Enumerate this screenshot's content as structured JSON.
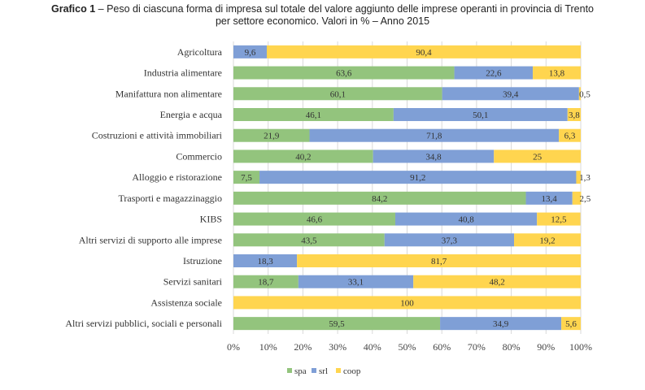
{
  "title": {
    "bold": "Grafico 1",
    "line1": " – Peso di ciascuna forma di impresa sul totale del valore aggiunto delle imprese operanti in provincia di Trento",
    "line2": "per settore economico. Valori in % – Anno 2015"
  },
  "chart_data": {
    "type": "bar",
    "orientation": "horizontal",
    "stacked": "100%",
    "categories": [
      "Agricoltura",
      "Industria alimentare",
      "Manifattura non alimentare",
      "Energia e acqua",
      "Costruzioni e attività immobiliari",
      "Commercio",
      "Alloggio e ristorazione",
      "Trasporti e magazzinaggio",
      "KIBS",
      "Altri servizi di supporto alle imprese",
      "Istruzione",
      "Servizi sanitari",
      "Assistenza sociale",
      "Altri servizi pubblici, sociali e personali"
    ],
    "series": [
      {
        "name": "spa",
        "color": "#93c47d",
        "values": [
          0,
          63.6,
          60.1,
          46.1,
          21.9,
          40.2,
          7.5,
          84.2,
          46.6,
          43.5,
          0,
          18.7,
          0,
          59.5
        ]
      },
      {
        "name": "srl",
        "color": "#7f9fd6",
        "values": [
          9.6,
          22.6,
          39.4,
          50.1,
          71.8,
          34.8,
          91.2,
          13.4,
          40.8,
          37.3,
          18.3,
          33.1,
          0,
          34.9
        ]
      },
      {
        "name": "coop",
        "color": "#ffd54f",
        "values": [
          90.4,
          13.8,
          0.5,
          3.8,
          6.3,
          25,
          1.3,
          2.5,
          12.5,
          19.2,
          81.7,
          48.2,
          100,
          5.6
        ]
      }
    ],
    "xlim": [
      0,
      100
    ],
    "xticks": [
      "0%",
      "10%",
      "20%",
      "30%",
      "40%",
      "50%",
      "60%",
      "70%",
      "80%",
      "90%",
      "100%"
    ],
    "grid": "vertical",
    "legend": "bottom"
  }
}
